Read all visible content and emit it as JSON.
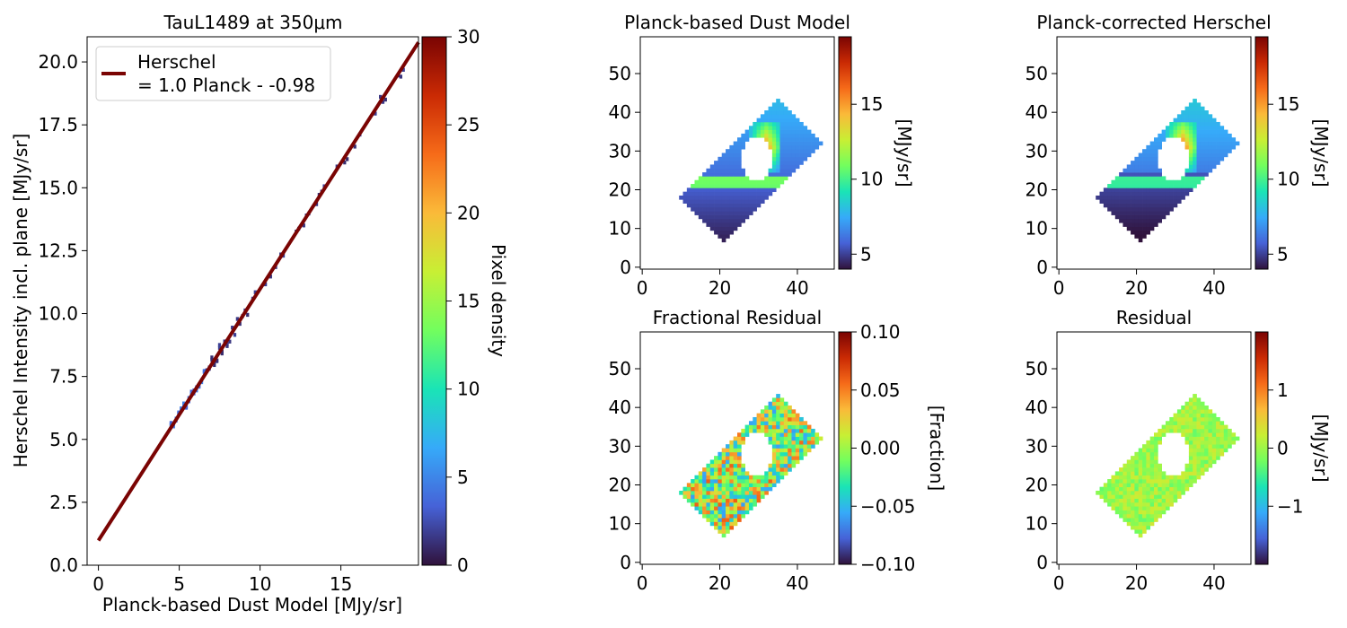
{
  "colors": {
    "fit_line": "#7a0403",
    "background": "#ffffff",
    "turbo_stops": [
      "#30123b",
      "#4662d7",
      "#36aaf9",
      "#1ae4b6",
      "#72fe5e",
      "#c8ef34",
      "#faba39",
      "#f66b19",
      "#ca2a04",
      "#7a0403"
    ]
  },
  "chart_data": [
    {
      "type": "heatmap",
      "title": "TauL1489 at 350μm",
      "xlabel": "Planck-based Dust Model [MJy/sr]",
      "ylabel": "Herschel Intensity incl. plane [MJy/sr]",
      "xlim": [
        -0.7,
        19.8
      ],
      "ylim": [
        0.0,
        21.0
      ],
      "xticks": [
        0,
        5,
        10,
        15
      ],
      "yticks": [
        "0.0",
        "2.5",
        "5.0",
        "7.5",
        "10.0",
        "12.5",
        "15.0",
        "17.5",
        "20.0"
      ],
      "colorbar": {
        "label": "Pixel density",
        "range": [
          0,
          30
        ],
        "ticks": [
          0,
          5,
          10,
          15,
          20,
          25,
          30
        ]
      },
      "fit": {
        "slope": 1.0,
        "intercept": 0.98,
        "x_range": [
          0,
          19.8
        ]
      },
      "legend": {
        "placement": "top-left",
        "line1": "Herschel",
        "line2": "= 1.0 Planck - -0.98"
      }
    },
    {
      "type": "heatmap",
      "title": "Planck-based Dust Model",
      "map": "model",
      "xticks": [
        0,
        20,
        40
      ],
      "yticks": [
        0,
        10,
        20,
        30,
        40,
        50
      ],
      "colorbar": {
        "label": "[MJy/sr]",
        "range": [
          4,
          19.5
        ],
        "ticks": [
          5,
          10,
          15
        ]
      }
    },
    {
      "type": "heatmap",
      "title": "Planck-corrected Herschel",
      "map": "herschel",
      "xticks": [
        0,
        20,
        40
      ],
      "yticks": [
        0,
        10,
        20,
        30,
        40,
        50
      ],
      "colorbar": {
        "label": "[MJy/sr]",
        "range": [
          4,
          19.5
        ],
        "ticks": [
          5,
          10,
          15
        ]
      }
    },
    {
      "type": "heatmap",
      "title": "Fractional Residual",
      "map": "frac",
      "xticks": [
        0,
        20,
        40
      ],
      "yticks": [
        0,
        10,
        20,
        30,
        40,
        50
      ],
      "colorbar": {
        "label": "[Fraction]",
        "range": [
          -0.1,
          0.1
        ],
        "ticks": [
          "0.10",
          "0.05",
          "0.00",
          "−0.05",
          "−0.10"
        ]
      }
    },
    {
      "type": "heatmap",
      "title": "Residual",
      "map": "resid",
      "xticks": [
        0,
        20,
        40
      ],
      "yticks": [
        0,
        10,
        20,
        30,
        40,
        50
      ],
      "colorbar": {
        "label": "[MJy/sr]",
        "range": [
          -2,
          2
        ],
        "ticks": [
          "1",
          "0",
          "−1"
        ]
      }
    }
  ]
}
